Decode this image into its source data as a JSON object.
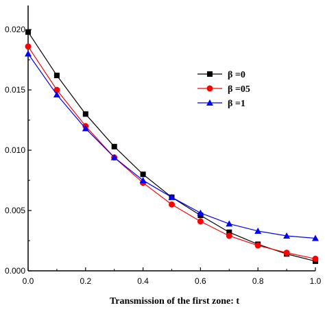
{
  "chart_data": {
    "type": "line",
    "title": "",
    "xlabel": "Transmission of the first zone: t",
    "ylabel": "",
    "xlim": [
      0.0,
      1.0
    ],
    "ylim": [
      0.0,
      0.022
    ],
    "x_ticks": [
      0.0,
      0.2,
      0.4,
      0.6,
      0.8,
      1.0
    ],
    "x_tick_labels": [
      "0.0",
      "0.2",
      "0.4",
      "0.6",
      "0.8",
      "1.0"
    ],
    "y_ticks": [
      0.0,
      0.005,
      0.01,
      0.015,
      0.02
    ],
    "y_tick_labels": [
      "0.000",
      "0.005",
      "0.010",
      "0.015",
      "0.020"
    ],
    "grid": false,
    "legend_position": "top-right",
    "x": [
      0.0,
      0.1,
      0.2,
      0.3,
      0.4,
      0.5,
      0.6,
      0.7,
      0.8,
      0.9,
      1.0
    ],
    "series": [
      {
        "name": "β =0",
        "marker": "square",
        "color": "#000000",
        "values": [
          0.0198,
          0.0162,
          0.013,
          0.0103,
          0.008,
          0.0061,
          0.0046,
          0.0032,
          0.0022,
          0.0014,
          0.0008
        ]
      },
      {
        "name": "β =05",
        "marker": "circle",
        "color": "#ff0000",
        "values": [
          0.0186,
          0.015,
          0.012,
          0.0094,
          0.0073,
          0.0055,
          0.0041,
          0.0029,
          0.0021,
          0.0015,
          0.001
        ]
      },
      {
        "name": "β =1",
        "marker": "triangle",
        "color": "#0000ff",
        "values": [
          0.018,
          0.0146,
          0.0118,
          0.0094,
          0.0075,
          0.0061,
          0.0048,
          0.0039,
          0.0033,
          0.0029,
          0.0027
        ]
      }
    ]
  }
}
